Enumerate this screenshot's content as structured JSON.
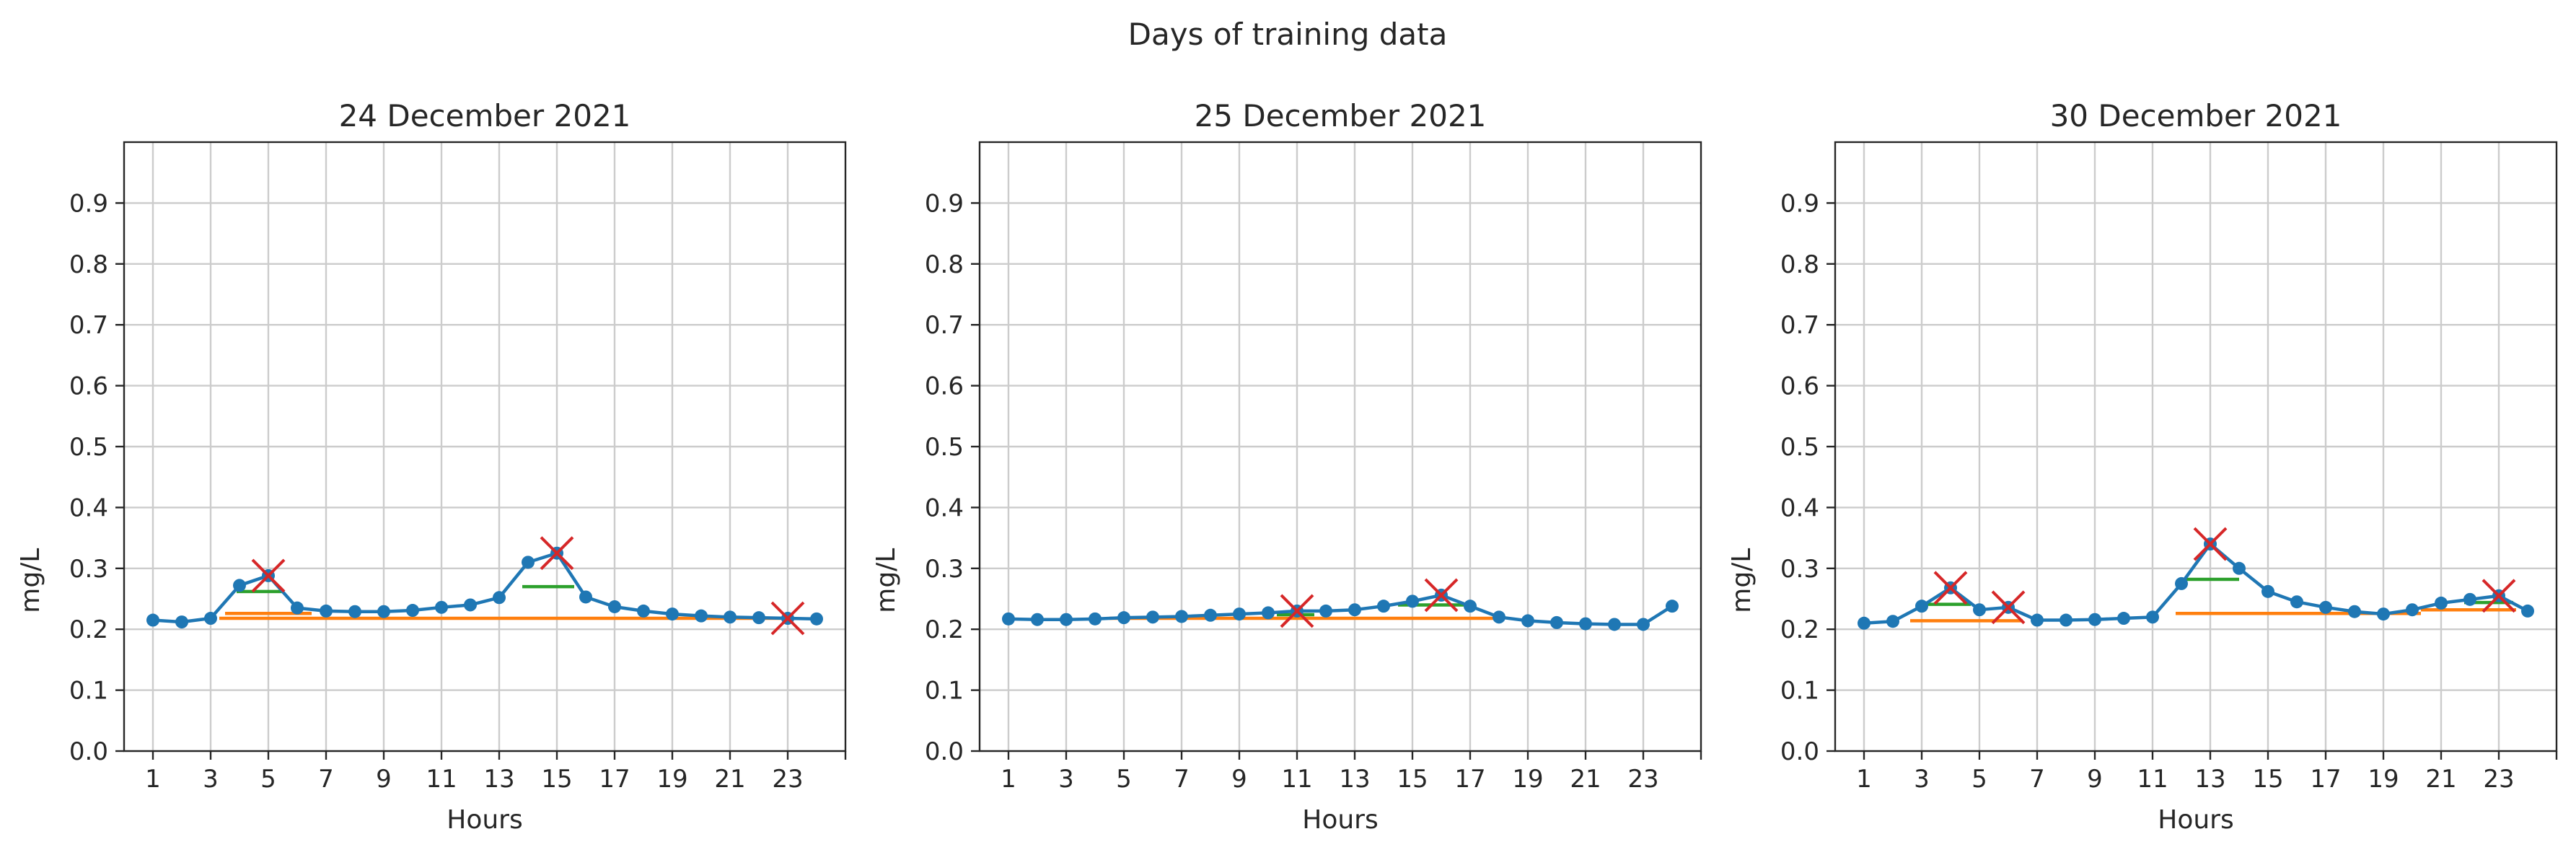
{
  "figure": {
    "suptitle": "Days of training data"
  },
  "colors": {
    "series": "#1f77b4",
    "peak_marker": "#d62728",
    "prominence": "#2ca02c",
    "width": "#ff7f0e",
    "grid": "#cccccc"
  },
  "chart_data": [
    {
      "type": "line",
      "title": "24 December 2021",
      "xlabel": "Hours",
      "ylabel": "mg/L",
      "xlim": [
        0,
        25
      ],
      "ylim": [
        0,
        1.0
      ],
      "xticks": [
        1,
        3,
        5,
        7,
        9,
        11,
        13,
        15,
        17,
        19,
        21,
        23
      ],
      "yticks": [
        0.0,
        0.1,
        0.2,
        0.3,
        0.4,
        0.5,
        0.6,
        0.7,
        0.8,
        0.9
      ],
      "grid": true,
      "x": [
        1,
        2,
        3,
        4,
        5,
        6,
        7,
        8,
        9,
        10,
        11,
        12,
        13,
        14,
        15,
        16,
        17,
        18,
        19,
        20,
        21,
        22,
        23,
        24
      ],
      "y": [
        0.215,
        0.212,
        0.218,
        0.272,
        0.288,
        0.235,
        0.23,
        0.229,
        0.229,
        0.231,
        0.236,
        0.24,
        0.252,
        0.31,
        0.325,
        0.253,
        0.237,
        0.23,
        0.225,
        0.222,
        0.22,
        0.219,
        0.218,
        0.217
      ],
      "peaks": [
        {
          "x": 5,
          "y": 0.288
        },
        {
          "x": 15,
          "y": 0.325
        },
        {
          "x": 23,
          "y": 0.218
        }
      ],
      "prominence_lines": [
        {
          "x1": 3.9,
          "x2": 5.5,
          "y": 0.262
        },
        {
          "x1": 13.8,
          "x2": 15.6,
          "y": 0.27
        }
      ],
      "width_lines": [
        {
          "x1": 3.5,
          "x2": 6.5,
          "y": 0.226
        },
        {
          "x1": 3.3,
          "x2": 23.0,
          "y": 0.218
        }
      ]
    },
    {
      "type": "line",
      "title": "25 December 2021",
      "xlabel": "Hours",
      "ylabel": "mg/L",
      "xlim": [
        0,
        25
      ],
      "ylim": [
        0,
        1.0
      ],
      "xticks": [
        1,
        3,
        5,
        7,
        9,
        11,
        13,
        15,
        17,
        19,
        21,
        23
      ],
      "yticks": [
        0.0,
        0.1,
        0.2,
        0.3,
        0.4,
        0.5,
        0.6,
        0.7,
        0.8,
        0.9
      ],
      "grid": true,
      "x": [
        1,
        2,
        3,
        4,
        5,
        6,
        7,
        8,
        9,
        10,
        11,
        12,
        13,
        14,
        15,
        16,
        17,
        18,
        19,
        20,
        21,
        22,
        23,
        24
      ],
      "y": [
        0.217,
        0.216,
        0.216,
        0.217,
        0.219,
        0.22,
        0.221,
        0.223,
        0.225,
        0.227,
        0.23,
        0.23,
        0.232,
        0.238,
        0.246,
        0.256,
        0.238,
        0.22,
        0.214,
        0.211,
        0.209,
        0.208,
        0.208,
        0.238
      ],
      "peaks": [
        {
          "x": 11,
          "y": 0.23
        },
        {
          "x": 16,
          "y": 0.256
        }
      ],
      "prominence_lines": [
        {
          "x1": 10.3,
          "x2": 11.6,
          "y": 0.224
        },
        {
          "x1": 14.5,
          "x2": 16.8,
          "y": 0.24
        }
      ],
      "width_lines": [
        {
          "x1": 4.5,
          "x2": 18.0,
          "y": 0.218
        }
      ]
    },
    {
      "type": "line",
      "title": "30 December 2021",
      "xlabel": "Hours",
      "ylabel": "mg/L",
      "xlim": [
        0,
        25
      ],
      "ylim": [
        0,
        1.0
      ],
      "xticks": [
        1,
        3,
        5,
        7,
        9,
        11,
        13,
        15,
        17,
        19,
        21,
        23
      ],
      "yticks": [
        0.0,
        0.1,
        0.2,
        0.3,
        0.4,
        0.5,
        0.6,
        0.7,
        0.8,
        0.9
      ],
      "grid": true,
      "x": [
        1,
        2,
        3,
        4,
        5,
        6,
        7,
        8,
        9,
        10,
        11,
        12,
        13,
        14,
        15,
        16,
        17,
        18,
        19,
        20,
        21,
        22,
        23,
        24
      ],
      "y": [
        0.21,
        0.213,
        0.238,
        0.268,
        0.232,
        0.236,
        0.215,
        0.215,
        0.216,
        0.218,
        0.22,
        0.275,
        0.34,
        0.3,
        0.262,
        0.245,
        0.236,
        0.229,
        0.225,
        0.232,
        0.243,
        0.249,
        0.255,
        0.23
      ],
      "peaks": [
        {
          "x": 4,
          "y": 0.268
        },
        {
          "x": 6,
          "y": 0.236
        },
        {
          "x": 13,
          "y": 0.34
        },
        {
          "x": 23,
          "y": 0.255
        }
      ],
      "prominence_lines": [
        {
          "x1": 3.2,
          "x2": 4.7,
          "y": 0.241
        },
        {
          "x1": 12.1,
          "x2": 14.0,
          "y": 0.282
        },
        {
          "x1": 21.8,
          "x2": 23.5,
          "y": 0.244
        }
      ],
      "width_lines": [
        {
          "x1": 2.6,
          "x2": 6.5,
          "y": 0.214
        },
        {
          "x1": 11.8,
          "x2": 20.3,
          "y": 0.226
        },
        {
          "x1": 20.3,
          "x2": 23.6,
          "y": 0.232
        }
      ]
    }
  ]
}
